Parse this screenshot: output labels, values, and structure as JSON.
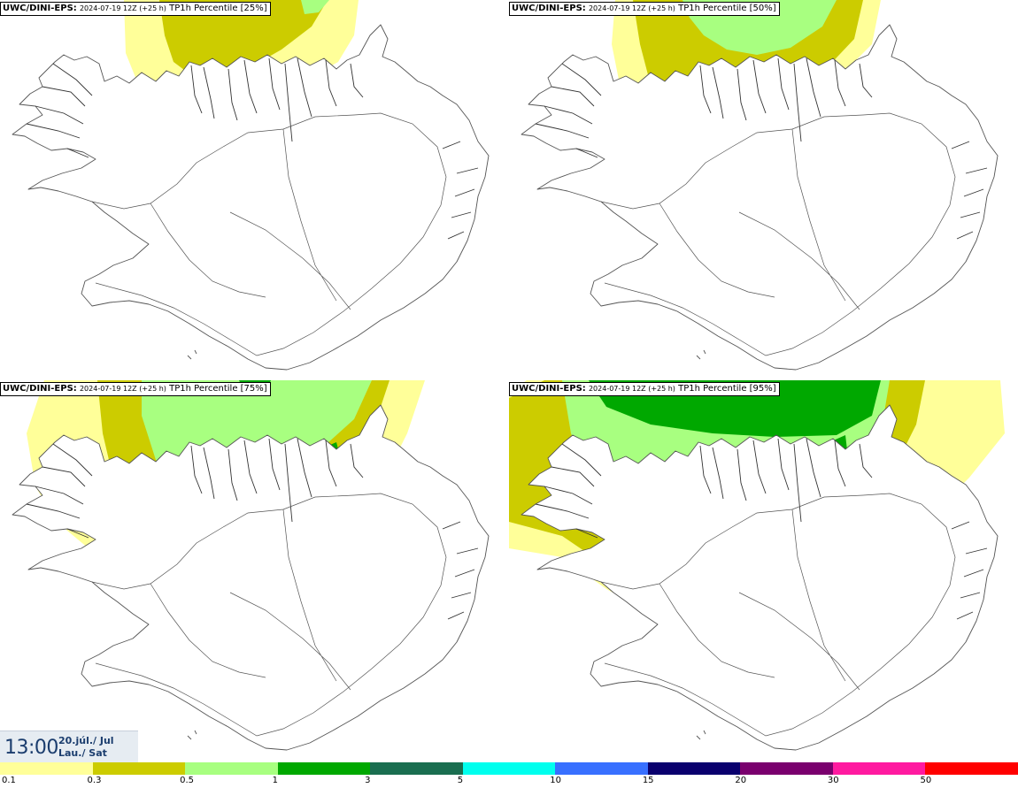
{
  "panels": [
    {
      "model": "UWC/DINI-EPS",
      "sep": ":",
      "run": "2024-07-19 12Z (+25 h)",
      "field": "TP1h Percentile [25%]"
    },
    {
      "model": "UWC/DINI-EPS",
      "sep": ":",
      "run": "2024-07-19 12Z (+25 h)",
      "field": "TP1h Percentile [50%]"
    },
    {
      "model": "UWC/DINI-EPS",
      "sep": ":",
      "run": "2024-07-19 12Z (+25 h)",
      "field": "TP1h Percentile [75%]"
    },
    {
      "model": "UWC/DINI-EPS",
      "sep": ":",
      "run": "2024-07-19 12Z (+25 h)",
      "field": "TP1h Percentile [95%]"
    }
  ],
  "valid_time": {
    "time": "13:00",
    "date_line1": "20.júl./ Jul",
    "date_line2": "Lau./ Sat"
  },
  "legend": {
    "colors": [
      "#ffff99",
      "#cccc00",
      "#a8ff80",
      "#00a800",
      "#1a6e50",
      "#00ffee",
      "#3870ff",
      "#0a006e",
      "#7a006e",
      "#ff1aa0",
      "#ff0000"
    ],
    "ticks": [
      "0.1",
      "0.3",
      "0.5",
      "1",
      "3",
      "5",
      "10",
      "15",
      "20",
      "30",
      "50"
    ]
  }
}
